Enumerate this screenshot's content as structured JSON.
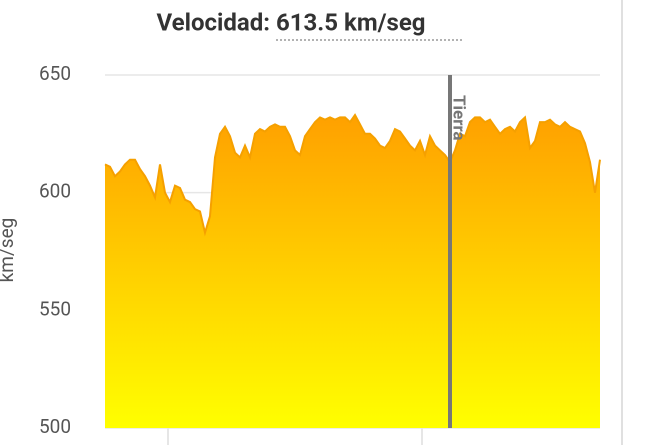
{
  "chart_data": {
    "type": "area",
    "title": "Velocidad:",
    "subtitle": "613.5 km/seg",
    "y_label": "km/seg",
    "ylim": [
      500,
      650
    ],
    "yticks": [
      500,
      550,
      600,
      650
    ],
    "grid": true,
    "line_color": "#f5a000",
    "color_top": "#ffa000",
    "color_bottom": "#ffff00",
    "marker": {
      "label": "Tierra",
      "index": 69,
      "color": "#777777"
    },
    "values": [
      612,
      611,
      607,
      609,
      612,
      614,
      614,
      610,
      607,
      603,
      598,
      612,
      600,
      596,
      603,
      602,
      597,
      596,
      593,
      592,
      583,
      590,
      615,
      625,
      628,
      624,
      617,
      615,
      620,
      615,
      625,
      627,
      626,
      628,
      629,
      628,
      628,
      624,
      618,
      616,
      624,
      627,
      630,
      632,
      631,
      632,
      631,
      632,
      632,
      630,
      633,
      629,
      625,
      625,
      623,
      620,
      619,
      622,
      627,
      626,
      623,
      620,
      618,
      622,
      616,
      624,
      620,
      618,
      616,
      613,
      618,
      625,
      624,
      630,
      632,
      632,
      630,
      631,
      628,
      625,
      627,
      628,
      626,
      630,
      632,
      619,
      622,
      630,
      630,
      631,
      629,
      628,
      630,
      628,
      627,
      626,
      621,
      613,
      600,
      614
    ]
  }
}
